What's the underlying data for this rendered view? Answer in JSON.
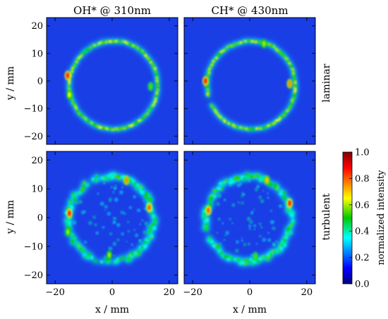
{
  "chart_data": {
    "type": "heatmap",
    "column_titles": [
      "OH* @ 310nm",
      "CH* @ 430nm"
    ],
    "row_labels": [
      "laminar",
      "turbulent"
    ],
    "xlabel": "x / mm",
    "ylabel": "y / mm",
    "xlim": [
      -23,
      23
    ],
    "ylim": [
      -23,
      23
    ],
    "xticks": [
      -20,
      0,
      20
    ],
    "yticks": [
      -20,
      -10,
      0,
      10,
      20
    ],
    "colorbar": {
      "label": "normalized intensity",
      "range": [
        0.0,
        1.0
      ],
      "ticks": [
        "0.0",
        "0.2",
        "0.4",
        "0.6",
        "0.8",
        "1.0"
      ],
      "colormap": "jet"
    },
    "background_color": "#1a3ee6",
    "panels": [
      {
        "name": "OH* laminar",
        "ring": {
          "cx": 0.5,
          "cy": -1.5,
          "r": 15.5,
          "gap_deg": null
        },
        "hotspots": [
          {
            "x": -15.6,
            "y": 2.0,
            "value": 0.85
          },
          {
            "x": -15.0,
            "y": -5.0,
            "value": 0.65
          },
          {
            "x": 13.5,
            "y": -2.0,
            "value": 0.55
          }
        ]
      },
      {
        "name": "CH* laminar",
        "ring": {
          "cx": 0.5,
          "cy": -1.5,
          "r": 15.5,
          "gap_deg": 200
        },
        "hotspots": [
          {
            "x": -15.5,
            "y": 0.0,
            "value": 0.85
          },
          {
            "x": 14.0,
            "y": -1.0,
            "value": 0.75
          },
          {
            "x": 5.0,
            "y": 13.5,
            "value": 0.6
          }
        ]
      },
      {
        "name": "OH* turbulent",
        "ring": {
          "cx": -0.5,
          "cy": -0.5,
          "r": 15.0,
          "gap_deg": null
        },
        "hotspots": [
          {
            "x": -15.0,
            "y": 1.5,
            "value": 0.85
          },
          {
            "x": -15.5,
            "y": -5.0,
            "value": 0.6
          },
          {
            "x": 13.0,
            "y": 3.5,
            "value": 0.8
          },
          {
            "x": 5.0,
            "y": 13.0,
            "value": 0.75
          },
          {
            "x": -1.0,
            "y": -13.0,
            "value": 0.6
          }
        ]
      },
      {
        "name": "CH* turbulent",
        "ring": {
          "cx": -0.5,
          "cy": -0.5,
          "r": 15.0,
          "gap_deg": 200
        },
        "hotspots": [
          {
            "x": -14.5,
            "y": 2.5,
            "value": 0.8
          },
          {
            "x": 14.0,
            "y": 5.0,
            "value": 0.85
          },
          {
            "x": 6.0,
            "y": 13.0,
            "value": 0.7
          },
          {
            "x": 2.0,
            "y": -13.5,
            "value": 0.55
          }
        ]
      }
    ]
  }
}
